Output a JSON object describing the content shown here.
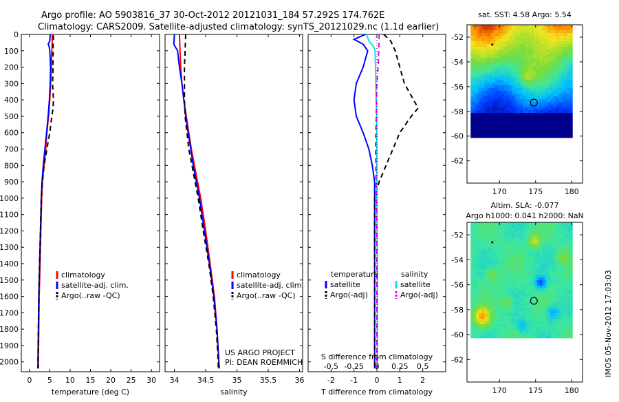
{
  "header": {
    "line1": "Argo profile: AO 5903816_37 30-Oct-2012 20121031_184 57.292S 174.762E",
    "line2": "Climatology: CARS2009. Satellite-adjusted climatology: synTS_20121029.nc (1.1d earlier)"
  },
  "side_stamp": "IMOS 05-Nov-2012 17:03:03",
  "colors": {
    "climatology": "#ff0000",
    "satellite": "#0000ff",
    "argo": "#000000",
    "salinity_satellite": "#00e5ee",
    "salinity_argo": "#ee00ee"
  },
  "chart_data": [
    {
      "type": "line",
      "panel": "temperature",
      "xlabel": "temperature (deg C)",
      "ylabel": "",
      "xlim": [
        -2,
        32
      ],
      "ylim": [
        2060,
        0
      ],
      "xticks": [
        0,
        5,
        10,
        15,
        20,
        25,
        30
      ],
      "yticks": [
        0,
        100,
        200,
        300,
        400,
        500,
        600,
        700,
        800,
        900,
        1000,
        1100,
        1200,
        1300,
        1400,
        1500,
        1600,
        1700,
        1800,
        1900,
        2000
      ],
      "legend": [
        "climatology",
        "satellite-adj. clim.",
        "Argo(..raw -QC)"
      ],
      "series": [
        {
          "name": "climatology",
          "style": "solid",
          "color": "#ff0000",
          "points": [
            [
              5.6,
              0
            ],
            [
              5.6,
              50
            ],
            [
              5.5,
              100
            ],
            [
              5.4,
              200
            ],
            [
              5.2,
              300
            ],
            [
              5.0,
              400
            ],
            [
              4.7,
              500
            ],
            [
              4.3,
              600
            ],
            [
              4.0,
              700
            ],
            [
              3.6,
              800
            ],
            [
              3.2,
              900
            ],
            [
              3.0,
              1000
            ],
            [
              2.8,
              1200
            ],
            [
              2.6,
              1400
            ],
            [
              2.4,
              1600
            ],
            [
              2.3,
              1800
            ],
            [
              2.2,
              2000
            ],
            [
              2.2,
              2040
            ]
          ]
        },
        {
          "name": "satellite-adj. clim.",
          "style": "solid",
          "color": "#0000ff",
          "points": [
            [
              5.1,
              0
            ],
            [
              5.0,
              40
            ],
            [
              4.6,
              60
            ],
            [
              4.8,
              70
            ],
            [
              5.0,
              100
            ],
            [
              5.2,
              200
            ],
            [
              5.1,
              300
            ],
            [
              4.9,
              400
            ],
            [
              4.6,
              500
            ],
            [
              4.2,
              600
            ],
            [
              3.8,
              700
            ],
            [
              3.4,
              800
            ],
            [
              3.1,
              900
            ],
            [
              2.9,
              1000
            ],
            [
              2.7,
              1200
            ],
            [
              2.5,
              1400
            ],
            [
              2.3,
              1600
            ],
            [
              2.2,
              1800
            ],
            [
              2.1,
              2000
            ],
            [
              2.1,
              2040
            ]
          ]
        },
        {
          "name": "Argo(..raw -QC)",
          "style": "dashed",
          "color": "#000000",
          "points": [
            [
              5.9,
              5
            ],
            [
              5.8,
              100
            ],
            [
              5.8,
              200
            ],
            [
              5.7,
              300
            ],
            [
              5.9,
              400
            ],
            [
              5.8,
              450
            ],
            [
              5.5,
              500
            ],
            [
              5.0,
              600
            ],
            [
              4.3,
              700
            ],
            [
              3.6,
              800
            ],
            [
              3.2,
              900
            ],
            [
              2.9,
              1000
            ],
            [
              2.7,
              1200
            ],
            [
              2.5,
              1400
            ],
            [
              2.3,
              1600
            ],
            [
              2.2,
              1800
            ],
            [
              2.1,
              2000
            ],
            [
              2.1,
              2040
            ]
          ]
        }
      ]
    },
    {
      "type": "line",
      "panel": "salinity",
      "xlabel": "salinity",
      "ylabel": "",
      "xlim": [
        33.85,
        36.05
      ],
      "ylim": [
        2060,
        0
      ],
      "xticks": [
        34,
        34.5,
        35,
        35.5,
        36
      ],
      "xticklabels": [
        "34",
        "34.5",
        "35",
        "35.5",
        "36"
      ],
      "legend": [
        "climatology",
        "satellite-adj. clim.",
        "Argo(..raw -QC)"
      ],
      "annotations": [
        "US ARGO PROJECT",
        "PI: DEAN ROEMMICH"
      ],
      "series": [
        {
          "name": "climatology",
          "style": "solid",
          "color": "#ff0000",
          "points": [
            [
              34.08,
              0
            ],
            [
              34.09,
              100
            ],
            [
              34.1,
              200
            ],
            [
              34.12,
              300
            ],
            [
              34.15,
              400
            ],
            [
              34.19,
              500
            ],
            [
              34.23,
              600
            ],
            [
              34.27,
              700
            ],
            [
              34.32,
              800
            ],
            [
              34.37,
              900
            ],
            [
              34.42,
              1000
            ],
            [
              34.5,
              1200
            ],
            [
              34.57,
              1400
            ],
            [
              34.64,
              1600
            ],
            [
              34.68,
              1800
            ],
            [
              34.71,
              2000
            ],
            [
              34.72,
              2040
            ]
          ]
        },
        {
          "name": "satellite-adj. clim.",
          "style": "solid",
          "color": "#0000ff",
          "points": [
            [
              34.0,
              0
            ],
            [
              33.99,
              60
            ],
            [
              34.05,
              100
            ],
            [
              34.08,
              200
            ],
            [
              34.12,
              300
            ],
            [
              34.15,
              400
            ],
            [
              34.18,
              500
            ],
            [
              34.22,
              600
            ],
            [
              34.26,
              700
            ],
            [
              34.3,
              800
            ],
            [
              34.35,
              900
            ],
            [
              34.4,
              1000
            ],
            [
              34.48,
              1200
            ],
            [
              34.56,
              1400
            ],
            [
              34.63,
              1600
            ],
            [
              34.68,
              1800
            ],
            [
              34.71,
              2000
            ],
            [
              34.71,
              2040
            ]
          ]
        },
        {
          "name": "Argo(..raw -QC)",
          "style": "dashed",
          "color": "#000000",
          "points": [
            [
              34.18,
              0
            ],
            [
              34.17,
              100
            ],
            [
              34.16,
              200
            ],
            [
              34.16,
              300
            ],
            [
              34.16,
              400
            ],
            [
              34.17,
              500
            ],
            [
              34.2,
              600
            ],
            [
              34.23,
              700
            ],
            [
              34.28,
              800
            ],
            [
              34.33,
              900
            ],
            [
              34.38,
              1000
            ],
            [
              34.46,
              1200
            ],
            [
              34.55,
              1400
            ],
            [
              34.62,
              1600
            ],
            [
              34.67,
              1800
            ],
            [
              34.7,
              2000
            ],
            [
              34.7,
              2040
            ]
          ]
        }
      ]
    },
    {
      "type": "line",
      "panel": "difference",
      "xlabel": "T difference from climatology",
      "xlabel_top": "S difference from climatology",
      "xlim": [
        -3,
        3
      ],
      "ylim": [
        2060,
        0
      ],
      "xticks": [
        -2,
        -1,
        0,
        1,
        2
      ],
      "secondary_xticks": [
        -0.5,
        -0.25,
        0,
        0.25,
        0.5
      ],
      "secondary_xticklabels": [
        "-0.5",
        "-0.25",
        "0",
        "0.25",
        "0.5"
      ],
      "legend_headings": [
        "temperature",
        "salinity"
      ],
      "legend": [
        "satellite",
        "Argo(-adj)",
        "satellite",
        "Argo(-adj)"
      ],
      "series": [
        {
          "name": "temperature satellite",
          "style": "solid",
          "color": "#0000ff",
          "points": [
            [
              -0.5,
              0
            ],
            [
              -1.0,
              30
            ],
            [
              -0.6,
              60
            ],
            [
              -0.4,
              100
            ],
            [
              -0.6,
              200
            ],
            [
              -0.9,
              300
            ],
            [
              -1.0,
              400
            ],
            [
              -0.9,
              500
            ],
            [
              -0.6,
              600
            ],
            [
              -0.35,
              700
            ],
            [
              -0.2,
              800
            ],
            [
              -0.1,
              900
            ],
            [
              -0.1,
              1000
            ],
            [
              -0.1,
              1200
            ],
            [
              -0.1,
              1400
            ],
            [
              -0.1,
              1600
            ],
            [
              -0.1,
              1800
            ],
            [
              -0.1,
              2000
            ],
            [
              -0.1,
              2040
            ]
          ]
        },
        {
          "name": "temperature Argo(-adj)",
          "style": "dashed",
          "color": "#000000",
          "points": [
            [
              0.3,
              0
            ],
            [
              0.6,
              40
            ],
            [
              0.8,
              100
            ],
            [
              1.0,
              200
            ],
            [
              1.2,
              300
            ],
            [
              1.6,
              400
            ],
            [
              1.8,
              450
            ],
            [
              1.5,
              500
            ],
            [
              1.0,
              600
            ],
            [
              0.7,
              700
            ],
            [
              0.4,
              800
            ],
            [
              0.1,
              900
            ],
            [
              -0.1,
              1000
            ],
            [
              -0.1,
              1200
            ],
            [
              -0.1,
              1400
            ],
            [
              -0.1,
              1600
            ],
            [
              -0.1,
              1800
            ],
            [
              -0.1,
              2000
            ],
            [
              -0.1,
              2040
            ]
          ]
        },
        {
          "name": "salinity satellite",
          "style": "solid",
          "color": "#00e5ee",
          "points": [
            [
              -0.45,
              0
            ],
            [
              -0.35,
              40
            ],
            [
              -0.12,
              80
            ],
            [
              -0.08,
              100
            ],
            [
              -0.06,
              200
            ],
            [
              -0.05,
              300
            ],
            [
              -0.03,
              400
            ],
            [
              -0.01,
              500
            ],
            [
              0.0,
              700
            ],
            [
              0.0,
              1000
            ],
            [
              0.01,
              1200
            ],
            [
              0.02,
              1400
            ],
            [
              0.02,
              1600
            ],
            [
              0.02,
              1800
            ],
            [
              0.02,
              2000
            ],
            [
              0.02,
              2040
            ]
          ]
        },
        {
          "name": "salinity Argo(-adj)",
          "style": "dashed",
          "color": "#ee00ee",
          "points": [
            [
              0.1,
              0
            ],
            [
              0.08,
              100
            ],
            [
              0.05,
              200
            ],
            [
              0.0,
              300
            ],
            [
              -0.02,
              400
            ],
            [
              -0.03,
              500
            ],
            [
              -0.05,
              600
            ],
            [
              -0.06,
              700
            ],
            [
              -0.05,
              800
            ],
            [
              -0.04,
              900
            ],
            [
              -0.02,
              1000
            ],
            [
              -0.01,
              1200
            ],
            [
              0.0,
              1400
            ],
            [
              0.0,
              1600
            ],
            [
              0.0,
              1800
            ],
            [
              0.0,
              2000
            ],
            [
              0.0,
              2040
            ]
          ]
        }
      ]
    },
    {
      "type": "heatmap",
      "panel": "sst-map",
      "title": "sat. SST: 4.58  Argo: 5.54",
      "xlim": [
        165.5,
        181.5
      ],
      "ylim": [
        -63.8,
        -51
      ],
      "data_extent_x": [
        166,
        180
      ],
      "data_extent_y": [
        -60.1,
        -51
      ],
      "xticks": [
        170,
        175,
        180
      ],
      "yticks": [
        -52,
        -54,
        -56,
        -58,
        -60,
        -62
      ],
      "marker_float": [
        174.762,
        -57.292
      ],
      "marker_prev": [
        169.0,
        -52.6
      ]
    },
    {
      "type": "heatmap",
      "panel": "sla-map",
      "title": "Altim. SLA: -0.077",
      "subtitle": "Argo h1000: 0.041 h2000: NaN",
      "xlim": [
        165.5,
        181.5
      ],
      "ylim": [
        -63.8,
        -51
      ],
      "data_extent_x": [
        166,
        180
      ],
      "data_extent_y": [
        -60.1,
        -51
      ],
      "xticks": [
        170,
        175,
        180
      ],
      "yticks": [
        -52,
        -54,
        -56,
        -58,
        -60,
        -62
      ],
      "marker_float": [
        174.762,
        -57.292
      ],
      "marker_prev": [
        169.0,
        -52.6
      ]
    }
  ]
}
